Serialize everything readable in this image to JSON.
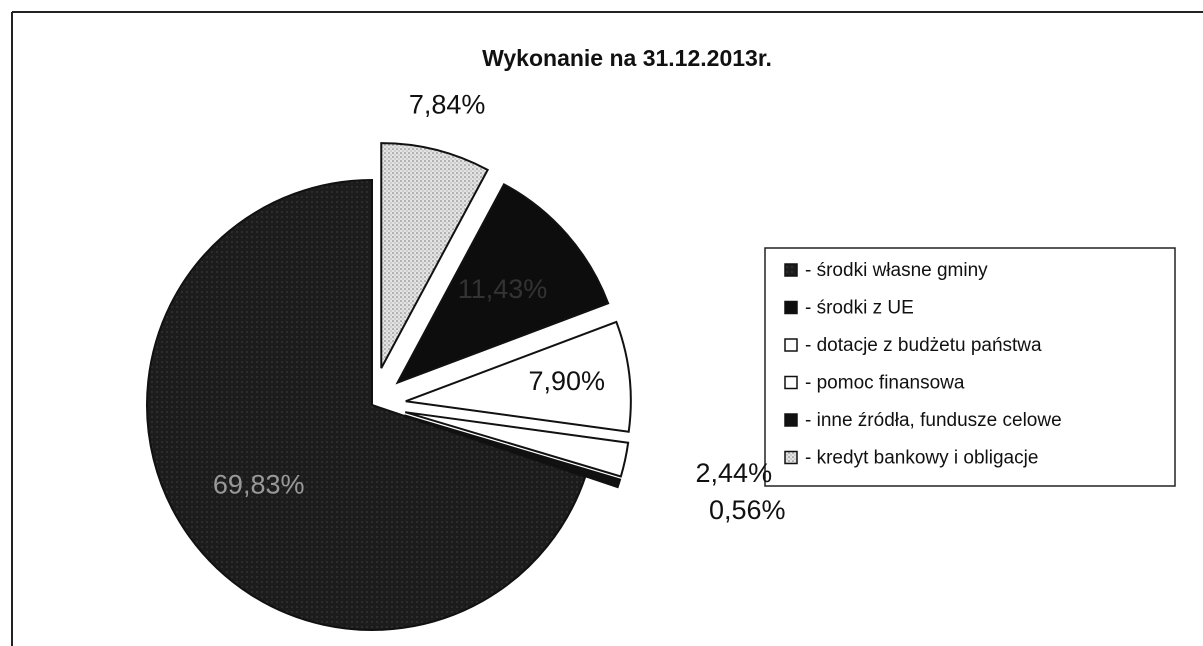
{
  "chart_data": {
    "type": "pie",
    "title": "Wykonanie na 31.12.2013r.",
    "categories": [
      "- środki własne gminy",
      "- środki z UE",
      "- dotacje z budżetu państwa",
      "- pomoc finansowa",
      "- inne źródła, fundusze celowe",
      "- kredyt bankowy i obligacje"
    ],
    "values": [
      69.83,
      11.43,
      7.9,
      2.44,
      0.56,
      7.84
    ],
    "value_labels": [
      "69,83%",
      "11,43%",
      "7,90%",
      "2,44%",
      "0,56%",
      "7,84%"
    ],
    "colors": [
      "#1c1c1c",
      "#0d0d0d",
      "#ffffff",
      "#ffffff",
      "#111111",
      "#d4d4d4"
    ],
    "legend": "right"
  }
}
